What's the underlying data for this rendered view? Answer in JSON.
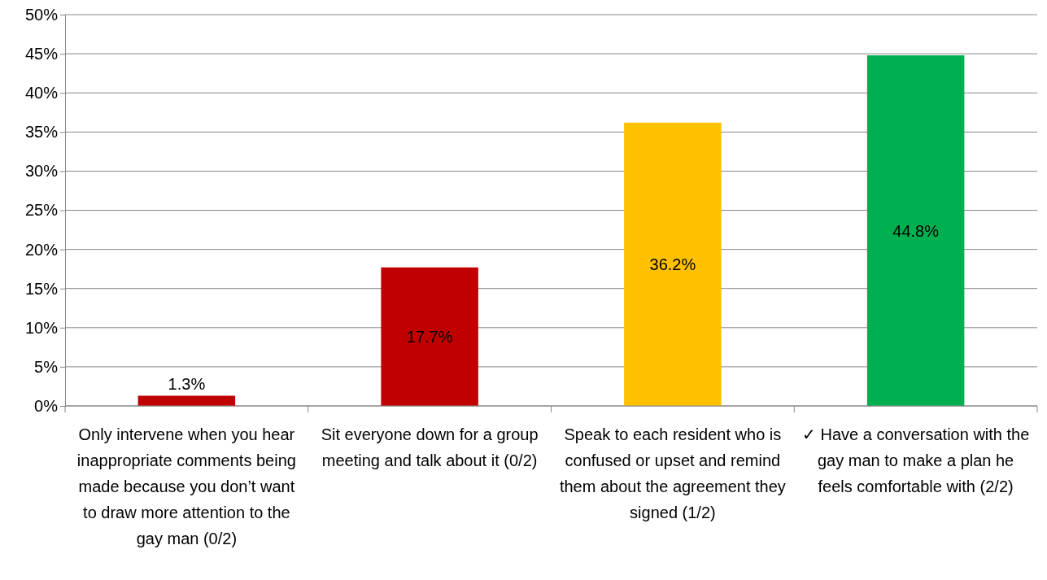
{
  "chart_data": {
    "type": "bar",
    "categories": [
      "Only intervene when you hear inappropriate comments being made because you don’t want to draw more attention to the gay man (0/2)",
      "Sit everyone down for a group meeting and talk about it (0/2)",
      "Speak to each resident who is confused or upset and remind them about the agreement they signed (1/2)",
      "✓ Have a conversation with the gay man to make a plan he feels comfortable with (2/2)"
    ],
    "values": [
      1.3,
      17.7,
      36.2,
      44.8
    ],
    "colors": [
      "#c00000",
      "#c00000",
      "#ffc000",
      "#00b050"
    ],
    "value_labels": [
      "1.3%",
      "17.7%",
      "36.2%",
      "44.8%"
    ],
    "ylim": [
      0,
      50
    ],
    "yticks": [
      {
        "value": 0,
        "label": "0%"
      },
      {
        "value": 5,
        "label": "5%"
      },
      {
        "value": 10,
        "label": "10%"
      },
      {
        "value": 15,
        "label": "15%"
      },
      {
        "value": 20,
        "label": "20%"
      },
      {
        "value": 25,
        "label": "25%"
      },
      {
        "value": 30,
        "label": "30%"
      },
      {
        "value": 35,
        "label": "35%"
      },
      {
        "value": 40,
        "label": "40%"
      },
      {
        "value": 45,
        "label": "45%"
      },
      {
        "value": 50,
        "label": "50%"
      }
    ],
    "grid": "y"
  }
}
